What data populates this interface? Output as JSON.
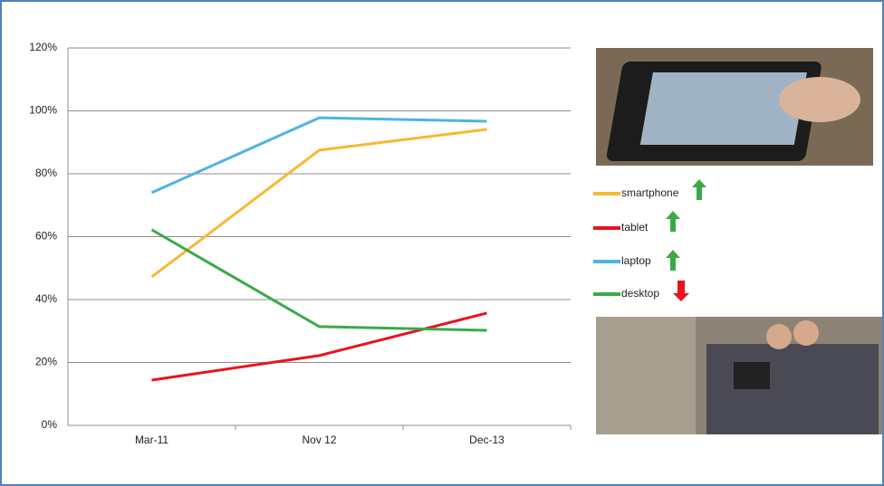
{
  "chart_data": {
    "type": "line",
    "categories": [
      "Mar-11",
      "Nov 12",
      "Dec-13"
    ],
    "series": [
      {
        "name": "smartphone",
        "color": "#f6b933",
        "values": [
          47.2,
          87.5,
          94.1
        ]
      },
      {
        "name": "tablet",
        "color": "#e8131f",
        "values": [
          14.4,
          22.2,
          35.7
        ]
      },
      {
        "name": "laptop",
        "color": "#4fb3e3",
        "values": [
          74,
          97.8,
          96.7
        ]
      },
      {
        "name": "desktop",
        "color": "#3aaa49",
        "values": [
          62.2,
          31.4,
          30.2
        ]
      }
    ],
    "ylim": [
      0,
      120
    ],
    "yticks": [
      {
        "value": 0,
        "label": "0%"
      },
      {
        "value": 20,
        "label": "20%"
      },
      {
        "value": 40,
        "label": "40%"
      },
      {
        "value": 60,
        "label": "60%"
      },
      {
        "value": 80,
        "label": "80%"
      },
      {
        "value": 100,
        "label": "100%"
      },
      {
        "value": 120,
        "label": "120%"
      }
    ],
    "grid": true
  }
}
